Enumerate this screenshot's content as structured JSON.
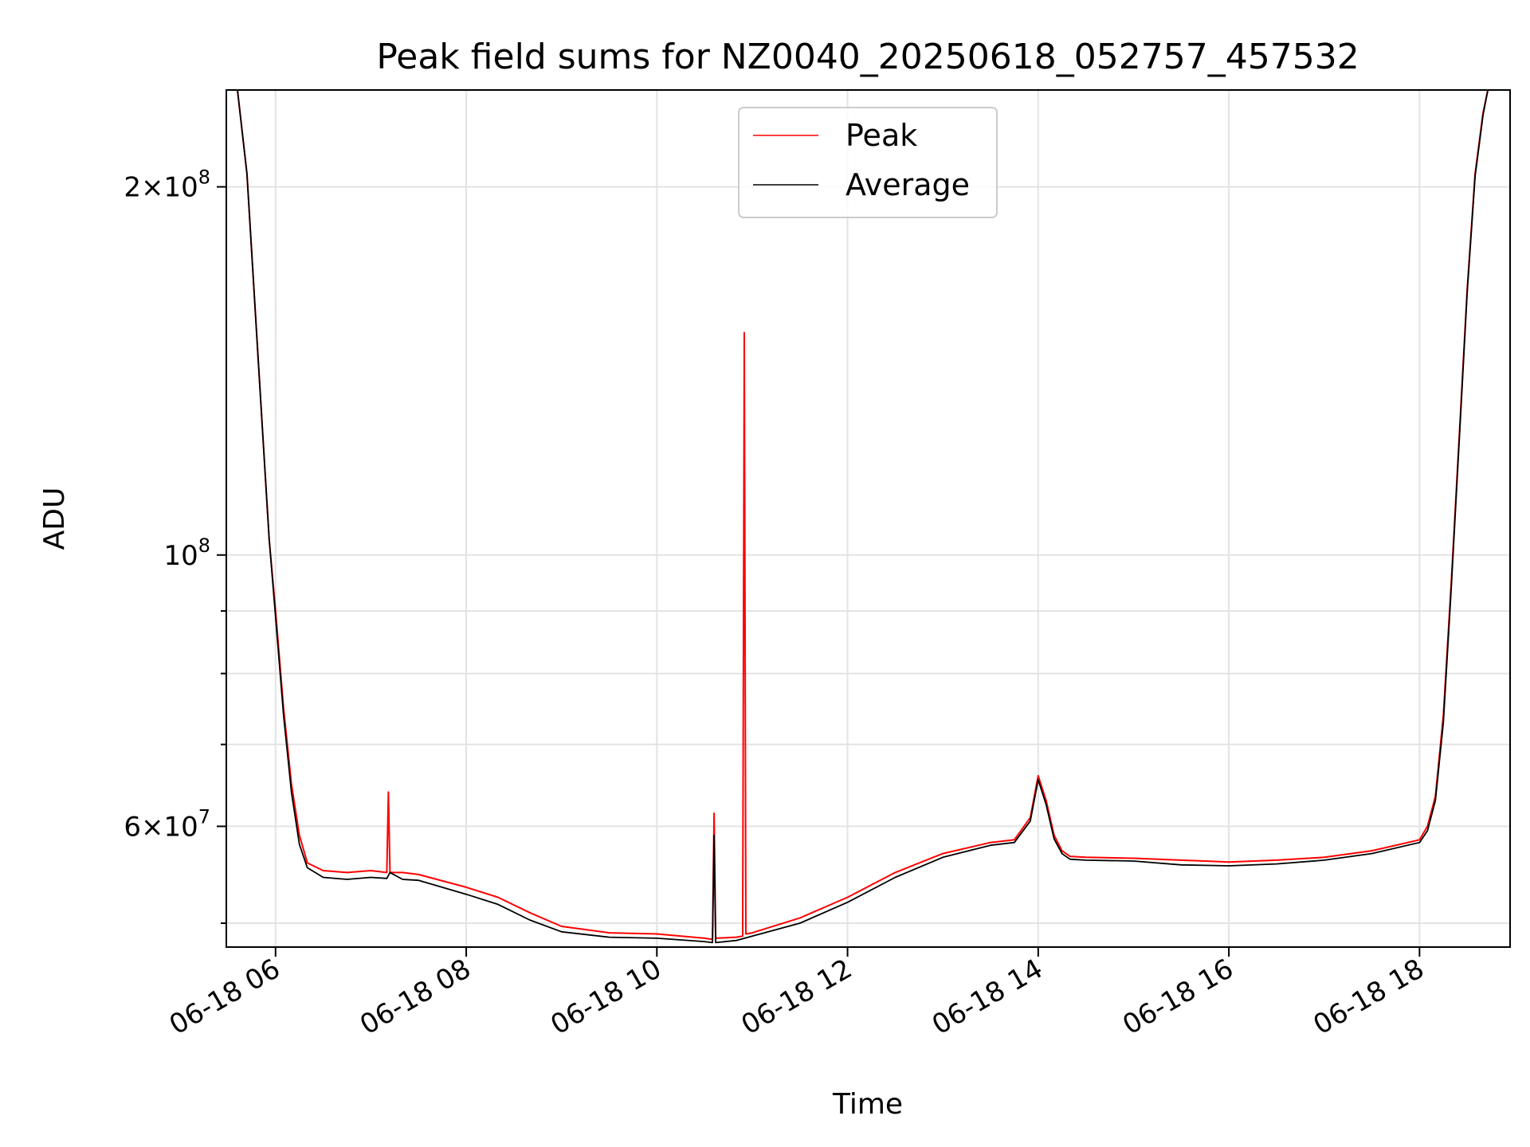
{
  "chart_data": {
    "type": "line",
    "title": "Peak field sums for NZ0040_20250618_052757_457532",
    "xlabel": "Time",
    "ylabel": "ADU",
    "x_axis": "datetime",
    "y_scale": "log",
    "xlim": [
      "2025-06-18 05:29",
      "2025-06-18 18:57"
    ],
    "ylim": [
      47800000,
      240000000
    ],
    "grid": true,
    "legend_position": "upper center",
    "x_ticks": [
      "06-18 06",
      "06-18 08",
      "06-18 10",
      "06-18 12",
      "06-18 14",
      "06-18 16",
      "06-18 18"
    ],
    "y_ticks": [
      {
        "value": 60000000,
        "label": "6×10^7"
      },
      {
        "value": 100000000,
        "label": "10^8"
      },
      {
        "value": 200000000,
        "label": "2×10^8"
      }
    ],
    "series": [
      {
        "name": "Peak",
        "color": "#ff0000",
        "x": [
          "2025-06-18 05:29",
          "2025-06-18 05:36",
          "2025-06-18 05:42",
          "2025-06-18 05:47",
          "2025-06-18 05:52",
          "2025-06-18 05:56",
          "2025-06-18 06:00",
          "2025-06-18 06:05",
          "2025-06-18 06:10",
          "2025-06-18 06:15",
          "2025-06-18 06:20",
          "2025-06-18 06:30",
          "2025-06-18 06:45",
          "2025-06-18 07:00",
          "2025-06-18 07:10",
          "2025-06-18 07:11",
          "2025-06-18 07:12",
          "2025-06-18 07:20",
          "2025-06-18 07:30",
          "2025-06-18 08:00",
          "2025-06-18 08:20",
          "2025-06-18 08:40",
          "2025-06-18 09:00",
          "2025-06-18 09:30",
          "2025-06-18 10:00",
          "2025-06-18 10:30",
          "2025-06-18 10:35",
          "2025-06-18 10:36",
          "2025-06-18 10:37",
          "2025-06-18 10:50",
          "2025-06-18 10:54",
          "2025-06-18 10:55",
          "2025-06-18 10:56",
          "2025-06-18 11:00",
          "2025-06-18 11:30",
          "2025-06-18 12:00",
          "2025-06-18 12:30",
          "2025-06-18 13:00",
          "2025-06-18 13:30",
          "2025-06-18 13:45",
          "2025-06-18 13:55",
          "2025-06-18 14:00",
          "2025-06-18 14:05",
          "2025-06-18 14:10",
          "2025-06-18 14:15",
          "2025-06-18 14:20",
          "2025-06-18 14:30",
          "2025-06-18 15:00",
          "2025-06-18 15:30",
          "2025-06-18 16:00",
          "2025-06-18 16:30",
          "2025-06-18 17:00",
          "2025-06-18 17:30",
          "2025-06-18 18:00",
          "2025-06-18 18:05",
          "2025-06-18 18:10",
          "2025-06-18 18:15",
          "2025-06-18 18:20",
          "2025-06-18 18:25",
          "2025-06-18 18:30",
          "2025-06-18 18:35",
          "2025-06-18 18:40",
          "2025-06-18 18:43",
          "2025-06-18 18:57"
        ],
        "y": [
          240000000,
          240000000,
          205000000,
          160000000,
          125000000,
          103000000,
          90000000,
          75000000,
          65000000,
          59000000,
          56000000,
          55200000,
          55000000,
          55200000,
          55000000,
          64000000,
          55000000,
          55000000,
          54800000,
          53500000,
          52500000,
          51000000,
          49700000,
          49100000,
          49000000,
          48600000,
          48500000,
          61500000,
          48600000,
          48700000,
          48800000,
          152000000,
          49000000,
          49100000,
          50500000,
          52500000,
          55000000,
          57000000,
          58200000,
          58500000,
          61000000,
          66000000,
          63000000,
          59000000,
          57300000,
          56700000,
          56600000,
          56500000,
          56300000,
          56100000,
          56300000,
          56600000,
          57300000,
          58500000,
          60000000,
          63500000,
          74000000,
          95000000,
          125000000,
          165000000,
          205000000,
          230000000,
          240000000,
          240000000
        ]
      },
      {
        "name": "Average",
        "color": "#000000",
        "x": [
          "2025-06-18 05:29",
          "2025-06-18 05:36",
          "2025-06-18 05:42",
          "2025-06-18 05:47",
          "2025-06-18 05:52",
          "2025-06-18 05:56",
          "2025-06-18 06:00",
          "2025-06-18 06:05",
          "2025-06-18 06:10",
          "2025-06-18 06:15",
          "2025-06-18 06:20",
          "2025-06-18 06:30",
          "2025-06-18 06:45",
          "2025-06-18 07:00",
          "2025-06-18 07:10",
          "2025-06-18 07:12",
          "2025-06-18 07:20",
          "2025-06-18 07:30",
          "2025-06-18 08:00",
          "2025-06-18 08:20",
          "2025-06-18 08:40",
          "2025-06-18 09:00",
          "2025-06-18 09:30",
          "2025-06-18 10:00",
          "2025-06-18 10:30",
          "2025-06-18 10:35",
          "2025-06-18 10:36",
          "2025-06-18 10:37",
          "2025-06-18 10:50",
          "2025-06-18 11:00",
          "2025-06-18 11:30",
          "2025-06-18 12:00",
          "2025-06-18 12:30",
          "2025-06-18 13:00",
          "2025-06-18 13:30",
          "2025-06-18 13:45",
          "2025-06-18 13:55",
          "2025-06-18 14:00",
          "2025-06-18 14:05",
          "2025-06-18 14:10",
          "2025-06-18 14:15",
          "2025-06-18 14:20",
          "2025-06-18 14:30",
          "2025-06-18 15:00",
          "2025-06-18 15:30",
          "2025-06-18 16:00",
          "2025-06-18 16:30",
          "2025-06-18 17:00",
          "2025-06-18 17:30",
          "2025-06-18 18:00",
          "2025-06-18 18:05",
          "2025-06-18 18:10",
          "2025-06-18 18:15",
          "2025-06-18 18:20",
          "2025-06-18 18:25",
          "2025-06-18 18:30",
          "2025-06-18 18:35",
          "2025-06-18 18:40",
          "2025-06-18 18:43",
          "2025-06-18 18:57"
        ],
        "y": [
          240000000,
          240000000,
          205000000,
          160000000,
          125000000,
          103000000,
          89000000,
          74000000,
          64000000,
          58000000,
          55500000,
          54500000,
          54300000,
          54500000,
          54400000,
          55000000,
          54300000,
          54200000,
          52800000,
          51800000,
          50300000,
          49200000,
          48700000,
          48600000,
          48300000,
          48200000,
          59000000,
          48200000,
          48400000,
          48800000,
          50000000,
          52000000,
          54500000,
          56600000,
          57900000,
          58200000,
          60600000,
          65500000,
          62500000,
          58600000,
          57000000,
          56400000,
          56300000,
          56200000,
          55800000,
          55700000,
          55900000,
          56300000,
          57000000,
          58200000,
          59500000,
          63000000,
          73000000,
          94000000,
          124000000,
          164000000,
          204000000,
          229000000,
          240000000,
          240000000
        ]
      }
    ]
  }
}
